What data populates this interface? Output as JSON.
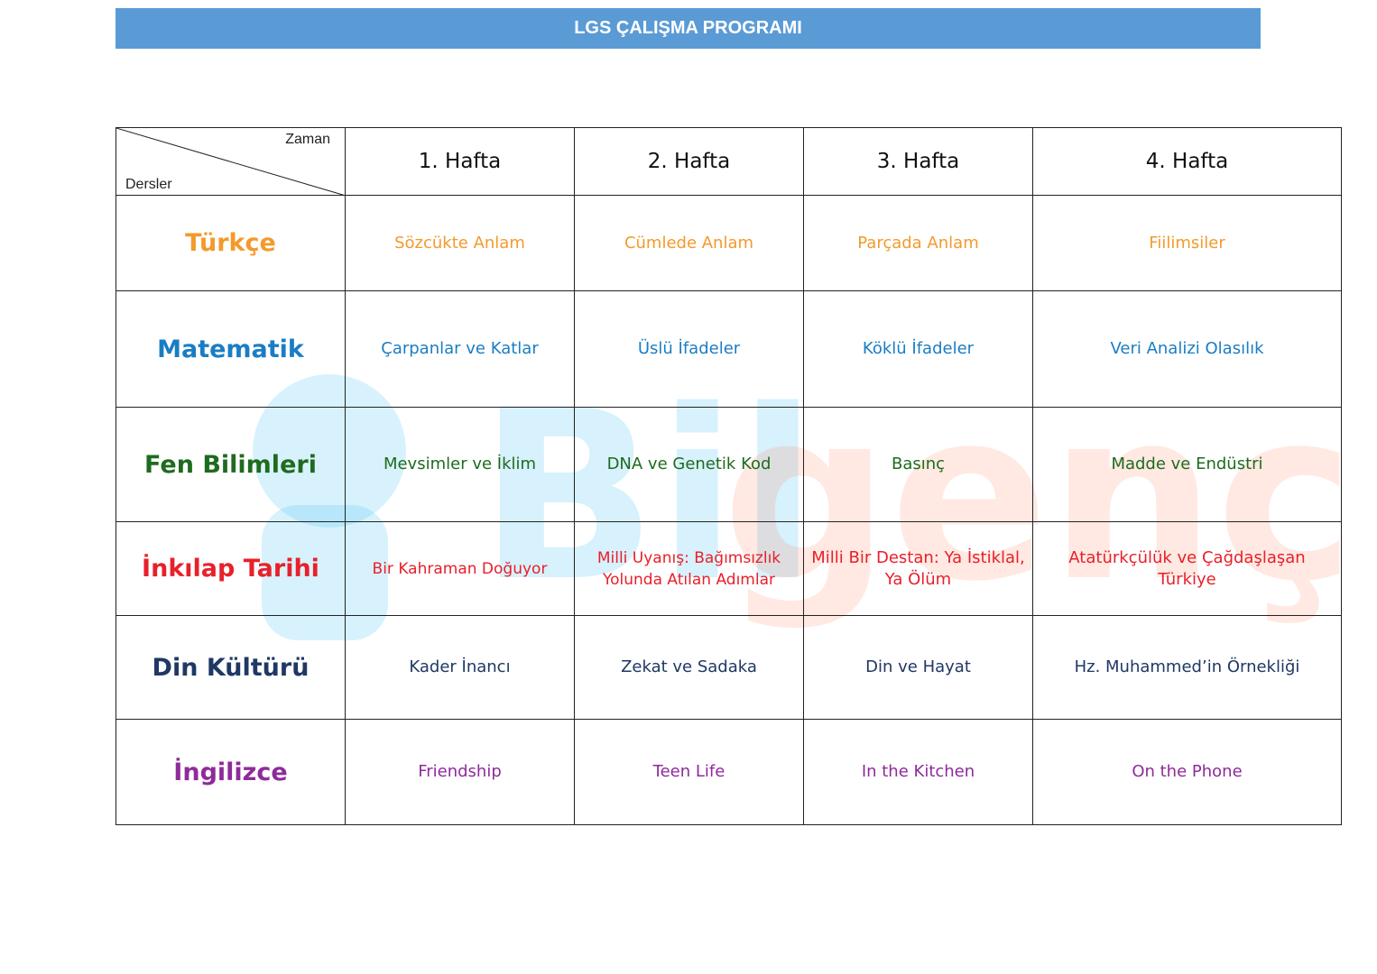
{
  "title": "LGS ÇALIŞMA PROGRAMI",
  "watermark": "Bilgenç",
  "colors": {
    "title_bar": "#5b9bd5",
    "turkce": "#f39a2b",
    "matematik": "#1a7dc4",
    "fen": "#1e6b1e",
    "inkilap": "#e8202a",
    "din": "#1f3864",
    "ingilizce": "#8e2b9a"
  },
  "corner": {
    "top_label": "Zaman",
    "bottom_label": "Dersler"
  },
  "weeks": [
    "1. Hafta",
    "2. Hafta",
    "3. Hafta",
    "4. Hafta"
  ],
  "rows": [
    {
      "subject": "Türkçe",
      "topics": [
        "Sözcükte Anlam",
        "Cümlede Anlam",
        "Parçada Anlam",
        "Fiilimsiler"
      ]
    },
    {
      "subject": "Matematik",
      "topics": [
        "Çarpanlar ve Katlar",
        "Üslü İfadeler",
        "Köklü İfadeler",
        "Veri Analizi Olasılık"
      ]
    },
    {
      "subject": "Fen Bilimleri",
      "topics": [
        "Mevsimler ve İklim",
        "DNA ve Genetik Kod",
        "Basınç",
        "Madde ve Endüstri"
      ]
    },
    {
      "subject": "İnkılap Tarihi",
      "topics": [
        "Bir Kahraman Doğuyor",
        "Milli Uyanış: Bağımsızlık Yolunda Atılan Adımlar",
        "Milli Bir Destan: Ya İstiklal, Ya Ölüm",
        "Atatürkçülük ve Çağdaşlaşan Türkiye"
      ]
    },
    {
      "subject": "Din Kültürü",
      "topics": [
        "Kader İnancı",
        "Zekat ve Sadaka",
        "Din ve Hayat",
        "Hz. Muhammed’in Örnekliği"
      ]
    },
    {
      "subject": "İngilizce",
      "topics": [
        "Friendship",
        "Teen Life",
        "In the Kitchen",
        "On the Phone"
      ]
    }
  ]
}
